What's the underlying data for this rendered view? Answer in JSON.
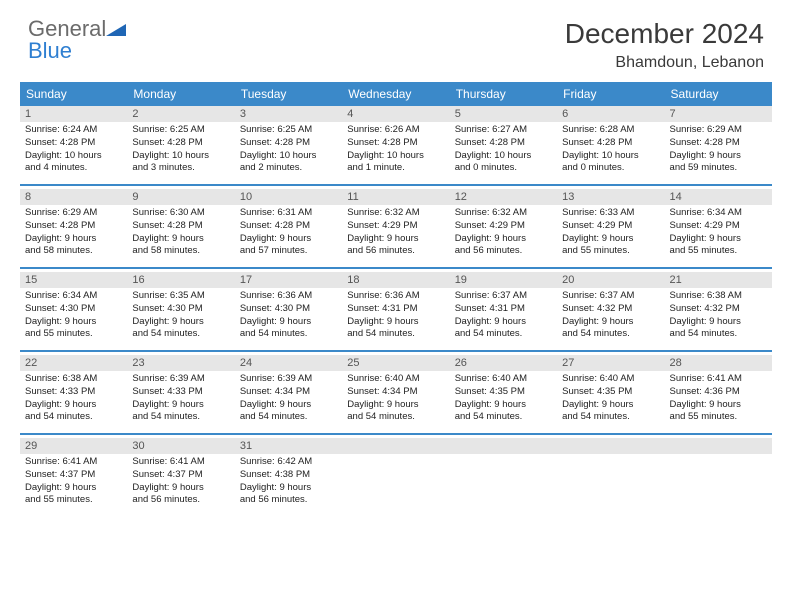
{
  "brand": {
    "part1": "General",
    "part2": "Blue"
  },
  "title": "December 2024",
  "location": "Bhamdoun, Lebanon",
  "colors": {
    "header_bg": "#3b89c9",
    "header_text": "#ffffff",
    "daynum_bg": "#e6e6e6",
    "border": "#3b89c9",
    "brand_gray": "#6b6b6b",
    "brand_blue": "#2f7fd1"
  },
  "day_headers": [
    "Sunday",
    "Monday",
    "Tuesday",
    "Wednesday",
    "Thursday",
    "Friday",
    "Saturday"
  ],
  "weeks": [
    [
      {
        "n": "1",
        "sr": "Sunrise: 6:24 AM",
        "ss": "Sunset: 4:28 PM",
        "d1": "Daylight: 10 hours",
        "d2": "and 4 minutes."
      },
      {
        "n": "2",
        "sr": "Sunrise: 6:25 AM",
        "ss": "Sunset: 4:28 PM",
        "d1": "Daylight: 10 hours",
        "d2": "and 3 minutes."
      },
      {
        "n": "3",
        "sr": "Sunrise: 6:25 AM",
        "ss": "Sunset: 4:28 PM",
        "d1": "Daylight: 10 hours",
        "d2": "and 2 minutes."
      },
      {
        "n": "4",
        "sr": "Sunrise: 6:26 AM",
        "ss": "Sunset: 4:28 PM",
        "d1": "Daylight: 10 hours",
        "d2": "and 1 minute."
      },
      {
        "n": "5",
        "sr": "Sunrise: 6:27 AM",
        "ss": "Sunset: 4:28 PM",
        "d1": "Daylight: 10 hours",
        "d2": "and 0 minutes."
      },
      {
        "n": "6",
        "sr": "Sunrise: 6:28 AM",
        "ss": "Sunset: 4:28 PM",
        "d1": "Daylight: 10 hours",
        "d2": "and 0 minutes."
      },
      {
        "n": "7",
        "sr": "Sunrise: 6:29 AM",
        "ss": "Sunset: 4:28 PM",
        "d1": "Daylight: 9 hours",
        "d2": "and 59 minutes."
      }
    ],
    [
      {
        "n": "8",
        "sr": "Sunrise: 6:29 AM",
        "ss": "Sunset: 4:28 PM",
        "d1": "Daylight: 9 hours",
        "d2": "and 58 minutes."
      },
      {
        "n": "9",
        "sr": "Sunrise: 6:30 AM",
        "ss": "Sunset: 4:28 PM",
        "d1": "Daylight: 9 hours",
        "d2": "and 58 minutes."
      },
      {
        "n": "10",
        "sr": "Sunrise: 6:31 AM",
        "ss": "Sunset: 4:28 PM",
        "d1": "Daylight: 9 hours",
        "d2": "and 57 minutes."
      },
      {
        "n": "11",
        "sr": "Sunrise: 6:32 AM",
        "ss": "Sunset: 4:29 PM",
        "d1": "Daylight: 9 hours",
        "d2": "and 56 minutes."
      },
      {
        "n": "12",
        "sr": "Sunrise: 6:32 AM",
        "ss": "Sunset: 4:29 PM",
        "d1": "Daylight: 9 hours",
        "d2": "and 56 minutes."
      },
      {
        "n": "13",
        "sr": "Sunrise: 6:33 AM",
        "ss": "Sunset: 4:29 PM",
        "d1": "Daylight: 9 hours",
        "d2": "and 55 minutes."
      },
      {
        "n": "14",
        "sr": "Sunrise: 6:34 AM",
        "ss": "Sunset: 4:29 PM",
        "d1": "Daylight: 9 hours",
        "d2": "and 55 minutes."
      }
    ],
    [
      {
        "n": "15",
        "sr": "Sunrise: 6:34 AM",
        "ss": "Sunset: 4:30 PM",
        "d1": "Daylight: 9 hours",
        "d2": "and 55 minutes."
      },
      {
        "n": "16",
        "sr": "Sunrise: 6:35 AM",
        "ss": "Sunset: 4:30 PM",
        "d1": "Daylight: 9 hours",
        "d2": "and 54 minutes."
      },
      {
        "n": "17",
        "sr": "Sunrise: 6:36 AM",
        "ss": "Sunset: 4:30 PM",
        "d1": "Daylight: 9 hours",
        "d2": "and 54 minutes."
      },
      {
        "n": "18",
        "sr": "Sunrise: 6:36 AM",
        "ss": "Sunset: 4:31 PM",
        "d1": "Daylight: 9 hours",
        "d2": "and 54 minutes."
      },
      {
        "n": "19",
        "sr": "Sunrise: 6:37 AM",
        "ss": "Sunset: 4:31 PM",
        "d1": "Daylight: 9 hours",
        "d2": "and 54 minutes."
      },
      {
        "n": "20",
        "sr": "Sunrise: 6:37 AM",
        "ss": "Sunset: 4:32 PM",
        "d1": "Daylight: 9 hours",
        "d2": "and 54 minutes."
      },
      {
        "n": "21",
        "sr": "Sunrise: 6:38 AM",
        "ss": "Sunset: 4:32 PM",
        "d1": "Daylight: 9 hours",
        "d2": "and 54 minutes."
      }
    ],
    [
      {
        "n": "22",
        "sr": "Sunrise: 6:38 AM",
        "ss": "Sunset: 4:33 PM",
        "d1": "Daylight: 9 hours",
        "d2": "and 54 minutes."
      },
      {
        "n": "23",
        "sr": "Sunrise: 6:39 AM",
        "ss": "Sunset: 4:33 PM",
        "d1": "Daylight: 9 hours",
        "d2": "and 54 minutes."
      },
      {
        "n": "24",
        "sr": "Sunrise: 6:39 AM",
        "ss": "Sunset: 4:34 PM",
        "d1": "Daylight: 9 hours",
        "d2": "and 54 minutes."
      },
      {
        "n": "25",
        "sr": "Sunrise: 6:40 AM",
        "ss": "Sunset: 4:34 PM",
        "d1": "Daylight: 9 hours",
        "d2": "and 54 minutes."
      },
      {
        "n": "26",
        "sr": "Sunrise: 6:40 AM",
        "ss": "Sunset: 4:35 PM",
        "d1": "Daylight: 9 hours",
        "d2": "and 54 minutes."
      },
      {
        "n": "27",
        "sr": "Sunrise: 6:40 AM",
        "ss": "Sunset: 4:35 PM",
        "d1": "Daylight: 9 hours",
        "d2": "and 54 minutes."
      },
      {
        "n": "28",
        "sr": "Sunrise: 6:41 AM",
        "ss": "Sunset: 4:36 PM",
        "d1": "Daylight: 9 hours",
        "d2": "and 55 minutes."
      }
    ],
    [
      {
        "n": "29",
        "sr": "Sunrise: 6:41 AM",
        "ss": "Sunset: 4:37 PM",
        "d1": "Daylight: 9 hours",
        "d2": "and 55 minutes."
      },
      {
        "n": "30",
        "sr": "Sunrise: 6:41 AM",
        "ss": "Sunset: 4:37 PM",
        "d1": "Daylight: 9 hours",
        "d2": "and 56 minutes."
      },
      {
        "n": "31",
        "sr": "Sunrise: 6:42 AM",
        "ss": "Sunset: 4:38 PM",
        "d1": "Daylight: 9 hours",
        "d2": "and 56 minutes."
      },
      {
        "n": "",
        "sr": "",
        "ss": "",
        "d1": "",
        "d2": "",
        "empty": true
      },
      {
        "n": "",
        "sr": "",
        "ss": "",
        "d1": "",
        "d2": "",
        "empty": true
      },
      {
        "n": "",
        "sr": "",
        "ss": "",
        "d1": "",
        "d2": "",
        "empty": true
      },
      {
        "n": "",
        "sr": "",
        "ss": "",
        "d1": "",
        "d2": "",
        "empty": true
      }
    ]
  ]
}
